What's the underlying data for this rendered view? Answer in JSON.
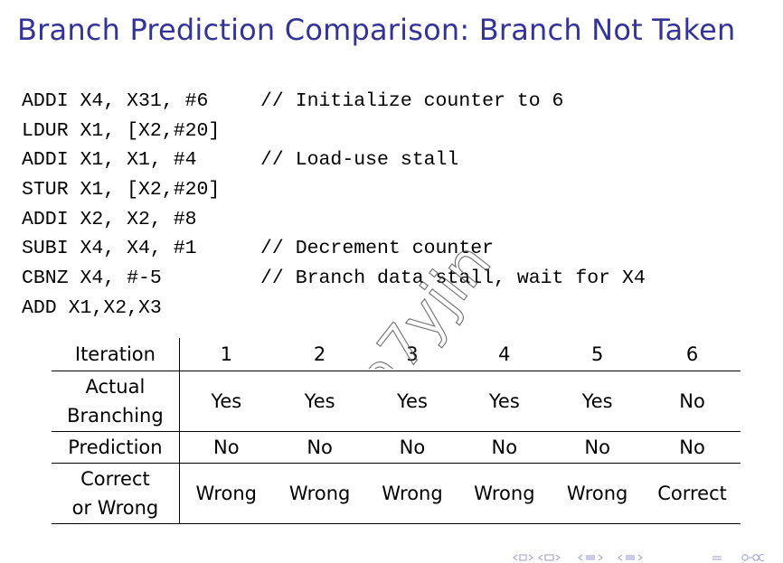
{
  "slide": {
    "title": "Branch Prediction Comparison: Branch Not Taken"
  },
  "code": [
    {
      "instr": "ADDI X4, X31, #6",
      "comment": "// Initialize counter to 6"
    },
    {
      "instr": "LDUR X1, [X2,#20]",
      "comment": ""
    },
    {
      "instr": "ADDI X1, X1, #4",
      "comment": "// Load-use stall"
    },
    {
      "instr": "STUR X1, [X2,#20]",
      "comment": ""
    },
    {
      "instr": "ADDI X2, X2, #8",
      "comment": ""
    },
    {
      "instr": "SUBI X4, X4, #1",
      "comment": "// Decrement counter"
    },
    {
      "instr": "CBNZ X4, #-5",
      "comment": "// Branch data stall, wait for X4"
    },
    {
      "instr": "ADD X1,X2,X3",
      "comment": ""
    }
  ],
  "table": {
    "rows": [
      {
        "label_lines": [
          "Iteration"
        ],
        "cells": [
          "1",
          "2",
          "3",
          "4",
          "5",
          "6"
        ]
      },
      {
        "label_lines": [
          "Actual",
          "Branching"
        ],
        "cells": [
          "Yes",
          "Yes",
          "Yes",
          "Yes",
          "Yes",
          "No"
        ]
      },
      {
        "label_lines": [
          "Prediction"
        ],
        "cells": [
          "No",
          "No",
          "No",
          "No",
          "No",
          "No"
        ]
      },
      {
        "label_lines": [
          "Correct",
          "or Wrong"
        ],
        "cells": [
          "Wrong",
          "Wrong",
          "Wrong",
          "Wrong",
          "Wrong",
          "Correct"
        ]
      }
    ]
  },
  "watermark": {
    "text": "a7yjin"
  },
  "colors": {
    "title": "#33339a",
    "nav": "#9a9ad0"
  },
  "icons": {
    "navigation": [
      "nav-frame-prev-icon",
      "nav-frame-next-icon",
      "nav-subsection-icon",
      "nav-section-icon",
      "nav-align-icon",
      "nav-search-icon"
    ]
  }
}
